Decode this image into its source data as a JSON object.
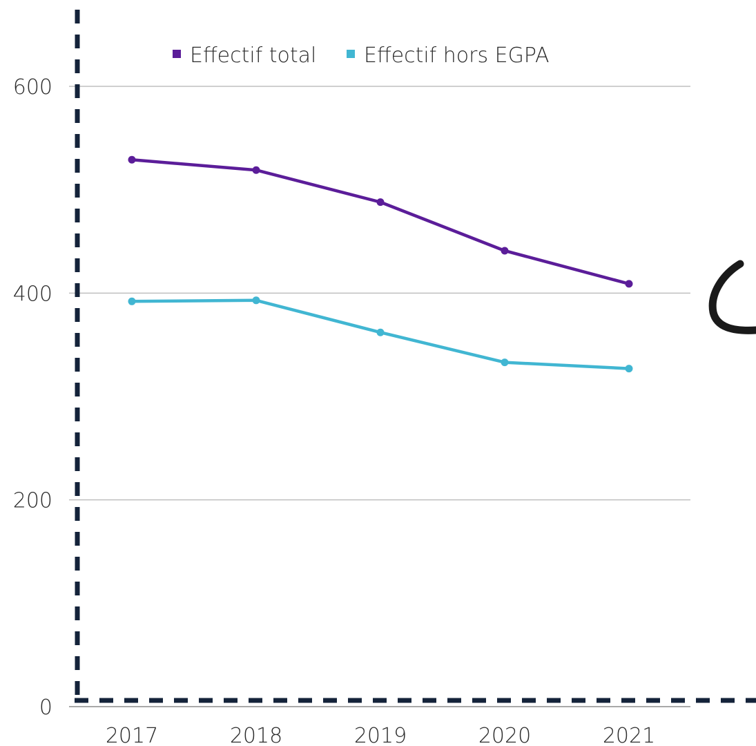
{
  "chart_data": {
    "type": "line",
    "title": "",
    "xlabel": "",
    "ylabel": "",
    "categories": [
      "2017",
      "2018",
      "2019",
      "2020",
      "2021"
    ],
    "ylim": [
      0,
      600
    ],
    "yticks": [
      0,
      200,
      400,
      600
    ],
    "grid": true,
    "legend_position": "top",
    "series": [
      {
        "name": "Effectif total",
        "color": "#5b1d99",
        "values": [
          529,
          519,
          488,
          441,
          409
        ]
      },
      {
        "name": "Effectif hors EGPA",
        "color": "#41b6d2",
        "values": [
          392,
          393,
          362,
          333,
          327
        ]
      }
    ]
  }
}
